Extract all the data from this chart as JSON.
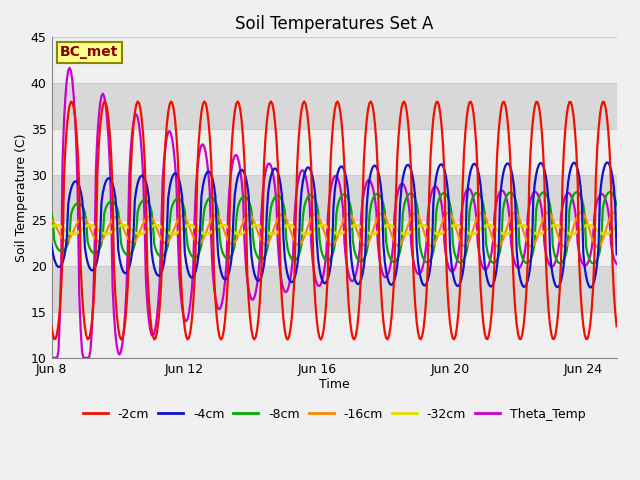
{
  "title": "Soil Temperatures Set A",
  "xlabel": "Time",
  "ylabel": "Soil Temperature (C)",
  "ylim": [
    10,
    45
  ],
  "x_tick_labels": [
    "Jun 8",
    "Jun 12",
    "Jun 16",
    "Jun 20",
    "Jun 24"
  ],
  "x_tick_positions": [
    0,
    4,
    8,
    12,
    16
  ],
  "annotation_text": "BC_met",
  "bg_color": "#d8d8d8",
  "legend_entries": [
    "-2cm",
    "-4cm",
    "-8cm",
    "-16cm",
    "-32cm",
    "Theta_Temp"
  ],
  "line_colors": [
    "#ee1100",
    "#1111cc",
    "#00aa00",
    "#ff8800",
    "#dddd00",
    "#cc00cc"
  ],
  "line_widths": [
    1.6,
    1.6,
    1.6,
    1.6,
    2.0,
    1.6
  ]
}
